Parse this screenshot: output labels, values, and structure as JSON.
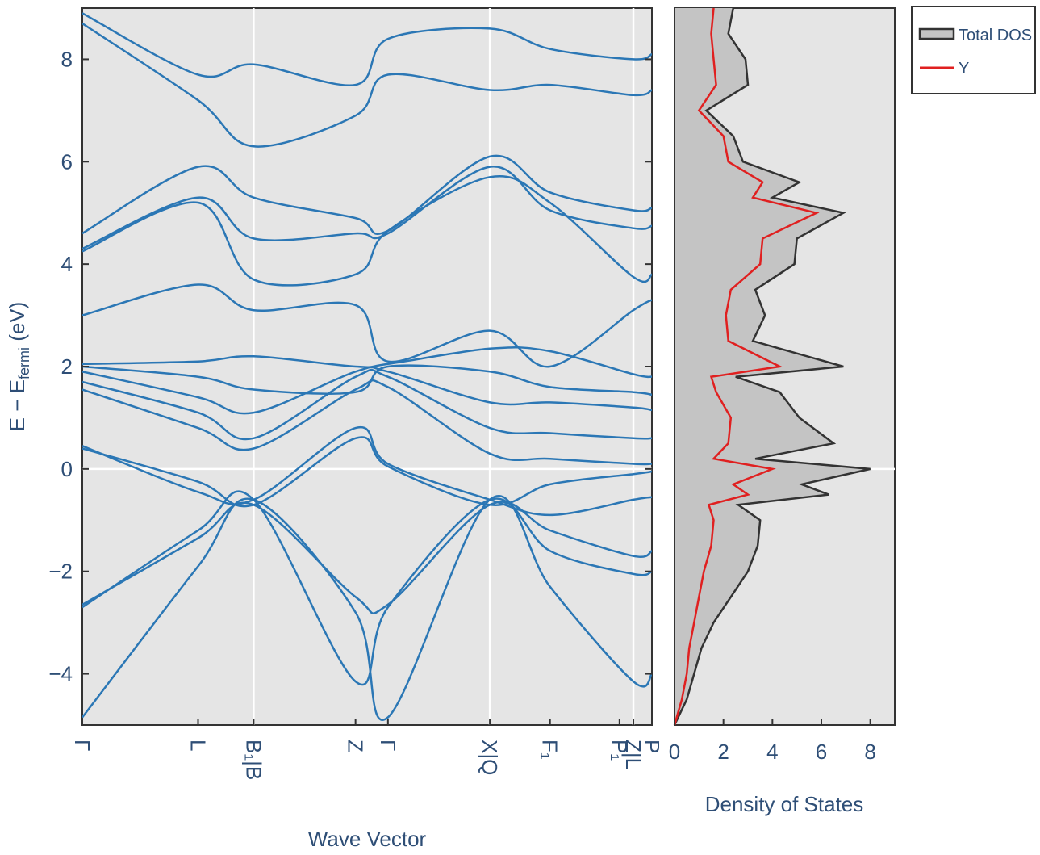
{
  "chart_data": [
    {
      "type": "line",
      "panel": "band-structure",
      "xlabel": "Wave Vector",
      "ylabel_main": "E − E",
      "ylabel_sub": "fermi",
      "ylabel_unit": " (eV)",
      "ylim": [
        -5,
        9
      ],
      "yticks": [
        -4,
        -2,
        0,
        2,
        4,
        6,
        8
      ],
      "ytick_labels": [
        "−4",
        "−2",
        "0",
        "2",
        "4",
        "6",
        "8"
      ],
      "kpath_ticks": [
        {
          "k": 0,
          "label": "Γ"
        },
        {
          "k": 1.25,
          "label": "L"
        },
        {
          "k": 1.85,
          "label": "B₁|B"
        },
        {
          "k": 2.95,
          "label": "Z"
        },
        {
          "k": 3.3,
          "label": "Γ"
        },
        {
          "k": 4.4,
          "label": "X|Q"
        },
        {
          "k": 5.05,
          "label": "F₁"
        },
        {
          "k": 5.8,
          "label": "P₁"
        },
        {
          "k": 5.95,
          "label": "Z|L"
        },
        {
          "k": 6.15,
          "label": "P"
        }
      ],
      "xlim": [
        0,
        6.15
      ],
      "vertical_lines_at_k": [
        1.85,
        4.4,
        5.95
      ],
      "fermi_level": 0,
      "band_color": "#2b77b5",
      "background_color": "#e5e5e5",
      "series": [
        {
          "k": [
            0,
            1.25,
            1.85,
            2.95,
            3.3,
            4.4,
            5.05,
            5.95,
            6.15
          ],
          "values": [
            -4.85,
            -1.9,
            -0.6,
            -2.8,
            -4.85,
            -0.6,
            -2.3,
            -4.15,
            -4.0
          ]
        },
        {
          "k": [
            0,
            1.25,
            1.85,
            2.95,
            3.3,
            4.4,
            5.05,
            5.95,
            6.15
          ],
          "values": [
            -2.7,
            -1.2,
            -0.6,
            -4.15,
            -2.7,
            -0.6,
            -1.6,
            -2.05,
            -2.0
          ]
        },
        {
          "k": [
            0,
            1.25,
            1.85,
            2.95,
            3.3,
            4.4,
            5.05,
            5.95,
            6.15
          ],
          "values": [
            -2.65,
            -1.35,
            -0.7,
            -2.5,
            -2.65,
            -0.7,
            -1.2,
            -1.7,
            -1.6
          ]
        },
        {
          "k": [
            0,
            1.25,
            1.85,
            2.95,
            3.3,
            4.4,
            5.05,
            5.95,
            6.15
          ],
          "values": [
            0.45,
            -0.45,
            -0.6,
            0.8,
            0.1,
            -0.6,
            -0.9,
            -0.6,
            -0.55
          ]
        },
        {
          "k": [
            0,
            1.25,
            1.85,
            2.95,
            3.3,
            4.4,
            5.05,
            5.95,
            6.15
          ],
          "values": [
            0.4,
            -0.25,
            -0.7,
            0.6,
            0.05,
            -0.7,
            -0.3,
            -0.1,
            -0.05
          ]
        },
        {
          "k": [
            0,
            1.25,
            1.85,
            2.95,
            3.3,
            4.4,
            5.05,
            5.95,
            6.15
          ],
          "values": [
            1.55,
            0.8,
            0.4,
            1.55,
            1.6,
            0.3,
            0.2,
            0.1,
            0.1
          ]
        },
        {
          "k": [
            0,
            1.25,
            1.85,
            2.95,
            3.3,
            4.4,
            5.05,
            5.95,
            6.15
          ],
          "values": [
            1.7,
            1.1,
            0.6,
            1.8,
            1.8,
            0.8,
            0.7,
            0.6,
            0.6
          ]
        },
        {
          "k": [
            0,
            1.25,
            1.85,
            2.95,
            3.3,
            4.4,
            5.05,
            5.95,
            6.15
          ],
          "values": [
            1.9,
            1.4,
            1.1,
            1.9,
            1.9,
            1.3,
            1.3,
            1.2,
            1.15
          ]
        },
        {
          "k": [
            0,
            1.25,
            1.85,
            2.95,
            3.3,
            4.4,
            5.05,
            5.95,
            6.15
          ],
          "values": [
            2.0,
            1.8,
            1.55,
            1.5,
            2.0,
            1.9,
            1.6,
            1.5,
            1.45
          ]
        },
        {
          "k": [
            0,
            1.25,
            1.85,
            2.95,
            3.3,
            4.4,
            5.05,
            5.95,
            6.15
          ],
          "values": [
            2.05,
            2.1,
            2.2,
            2.0,
            2.05,
            2.35,
            2.3,
            1.85,
            1.8
          ]
        },
        {
          "k": [
            0,
            1.25,
            1.85,
            2.95,
            3.3,
            4.4,
            5.05,
            5.95,
            6.15
          ],
          "values": [
            3.0,
            3.6,
            3.1,
            3.2,
            2.1,
            2.7,
            2.0,
            3.1,
            3.3
          ]
        },
        {
          "k": [
            0,
            1.25,
            1.85,
            2.95,
            3.3,
            4.4,
            5.05,
            5.95,
            6.15
          ],
          "values": [
            4.25,
            5.2,
            3.7,
            3.8,
            4.65,
            5.7,
            5.2,
            3.75,
            3.8
          ]
        },
        {
          "k": [
            0,
            1.25,
            1.85,
            2.95,
            3.3,
            4.4,
            5.05,
            5.95,
            6.15
          ],
          "values": [
            4.3,
            5.3,
            4.5,
            4.6,
            4.6,
            5.9,
            5.05,
            4.7,
            4.75
          ]
        },
        {
          "k": [
            0,
            1.25,
            1.85,
            2.95,
            3.3,
            4.4,
            5.05,
            5.95,
            6.15
          ],
          "values": [
            4.6,
            5.9,
            5.3,
            4.9,
            4.65,
            6.1,
            5.4,
            5.05,
            5.1
          ]
        },
        {
          "k": [
            0,
            1.25,
            1.85,
            2.95,
            3.3,
            4.4,
            5.05,
            5.95,
            6.15
          ],
          "values": [
            8.7,
            7.2,
            6.3,
            6.9,
            7.7,
            7.4,
            7.5,
            7.3,
            7.4
          ]
        },
        {
          "k": [
            0,
            1.25,
            1.85,
            2.95,
            3.3,
            4.4,
            5.05,
            5.95,
            6.15
          ],
          "values": [
            8.9,
            7.7,
            7.9,
            7.5,
            8.4,
            8.6,
            8.2,
            8.0,
            8.1
          ]
        }
      ]
    },
    {
      "type": "line",
      "panel": "density-of-states",
      "xlabel": "Density of States",
      "xlim": [
        0,
        9
      ],
      "xticks": [
        0,
        2,
        4,
        6,
        8
      ],
      "xtick_labels": [
        "0",
        "2",
        "4",
        "6",
        "8"
      ],
      "ylim": [
        -5,
        9
      ],
      "legend_position": "outside-top-right",
      "background_color": "#e5e5e5",
      "energy": [
        -5,
        -4.5,
        -4,
        -3.5,
        -3,
        -2.5,
        -2,
        -1.5,
        -1,
        -0.7,
        -0.5,
        -0.3,
        0,
        0.2,
        0.5,
        1,
        1.5,
        1.8,
        2,
        2.5,
        3,
        3.5,
        4,
        4.5,
        5,
        5.3,
        5.6,
        6,
        6.5,
        7,
        7.5,
        8,
        8.5,
        9
      ],
      "series": [
        {
          "name": "Total DOS",
          "color": "#333333",
          "fill": "#c0c0c0",
          "values": [
            0,
            0.5,
            0.8,
            1.1,
            1.6,
            2.3,
            3.0,
            3.4,
            3.5,
            2.6,
            6.3,
            5.2,
            8.0,
            3.3,
            6.5,
            5.1,
            4.3,
            2.5,
            6.9,
            3.2,
            3.7,
            3.3,
            4.9,
            5.0,
            6.9,
            4.0,
            5.1,
            2.8,
            2.4,
            1.3,
            3.0,
            2.9,
            2.2,
            2.4
          ]
        },
        {
          "name": "Y",
          "color": "#e02020",
          "fill": null,
          "values": [
            0,
            0.3,
            0.5,
            0.6,
            0.8,
            1.0,
            1.2,
            1.5,
            1.6,
            1.4,
            3.0,
            2.4,
            4.0,
            1.6,
            2.2,
            2.3,
            1.7,
            1.5,
            4.3,
            2.2,
            2.1,
            2.3,
            3.5,
            3.6,
            5.8,
            3.2,
            3.6,
            2.2,
            2.0,
            1.0,
            1.7,
            1.6,
            1.5,
            1.6
          ]
        }
      ]
    }
  ]
}
